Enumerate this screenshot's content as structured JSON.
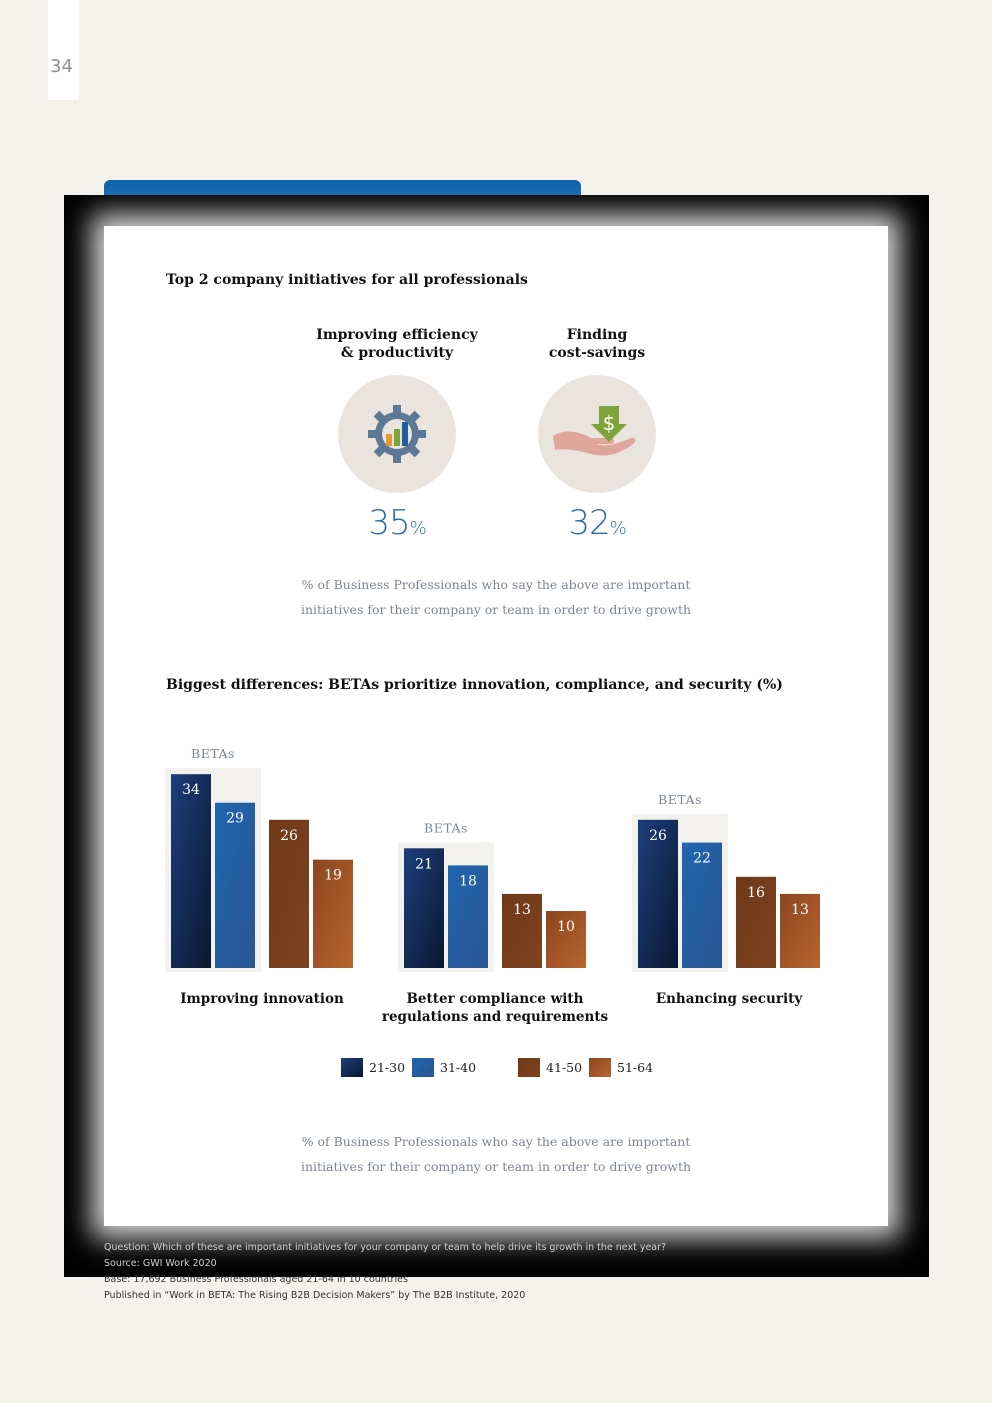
{
  "page": {
    "number": "34"
  },
  "colors": {
    "frame": "#000000",
    "card": "#ffffff",
    "accent_blue": "#0f63ae",
    "value_blue": "#2f6cab",
    "beta_shade": "#f3f1ee"
  },
  "top_section": {
    "title": "Top 2 company initiatives for all professionals",
    "initiatives": [
      {
        "label": "Improving efficiency\n& productivity",
        "value": "35",
        "unit": "%",
        "icon": "gear-chart-icon"
      },
      {
        "label": "Finding\ncost-savings",
        "value": "32",
        "unit": "%",
        "icon": "hand-dollar-icon"
      }
    ],
    "note_line1": "% of Business Professionals who say the above are important",
    "note_line2": "initiatives for their company or team in order to drive growth"
  },
  "bottom_section": {
    "title": "Biggest differences: BETAs prioritize innovation, compliance, and security (%)",
    "note_line1": "% of Business Professionals who say the above are important",
    "note_line2": "initiatives for their company or team in order to drive growth"
  },
  "chart_data": {
    "type": "bar",
    "title": "Biggest differences: BETAs prioritize innovation, compliance, and security (%)",
    "xlabel": "",
    "ylabel": "",
    "ylim": [
      0,
      34
    ],
    "grid": false,
    "legend_position": "bottom",
    "beta_highlight_label": "BETAs",
    "beta_series": [
      "21-30",
      "31-40"
    ],
    "categories": [
      "Improving innovation",
      "Better compliance with\nregulations and requirements",
      "Enhancing security"
    ],
    "series": [
      {
        "name": "21-30",
        "values": [
          34,
          21,
          26
        ],
        "color_top": "#1c3f7c",
        "color_bottom": "#0b1730"
      },
      {
        "name": "31-40",
        "values": [
          29,
          18,
          22
        ],
        "color_top": "#1f66b0",
        "color_bottom": "#2a5592"
      },
      {
        "name": "41-50",
        "values": [
          26,
          13,
          16
        ],
        "color_top": "#703918",
        "color_bottom": "#7e4220"
      },
      {
        "name": "51-64",
        "values": [
          19,
          10,
          13
        ],
        "color_top": "#8c4620",
        "color_bottom": "#b8642e"
      }
    ]
  },
  "footer": {
    "question": "Question: Which of these are important initiatives for your company or team to help drive its growth in the next year?",
    "source": "Source: GWI Work 2020",
    "base": "Base: 17,692 Business Professionals aged 21-64 in 10 countries",
    "published": "Published in “Work in BETA: The Rising B2B Decision Makers” by The B2B Institute, 2020"
  }
}
